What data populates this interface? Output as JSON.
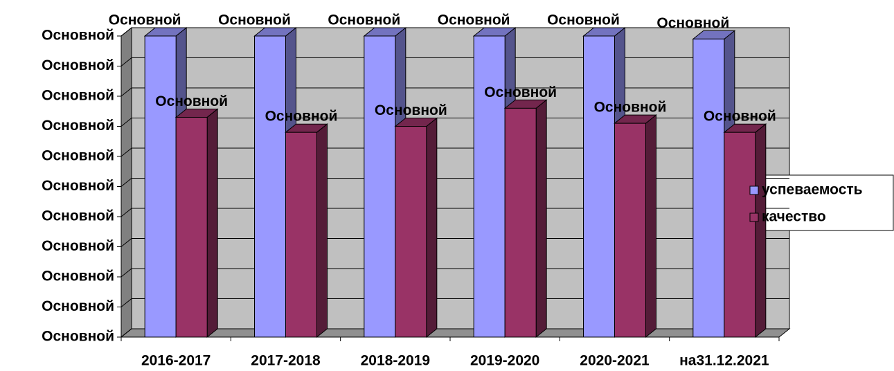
{
  "chart_data": {
    "type": "bar3d",
    "categories": [
      "2016-2017",
      "2017-2018",
      "2018-2019",
      "2019-2020",
      "2020-2021",
      "на31.12.2021"
    ],
    "series": [
      {
        "name": "успеваемость",
        "color": "#9999ff",
        "values": [
          100,
          100,
          100,
          100,
          100,
          99
        ],
        "value_labels": [
          "Основной",
          "Основной",
          "Основной",
          "Основной",
          "Основной",
          "Основной"
        ]
      },
      {
        "name": "качество",
        "color": "#993366",
        "values": [
          73,
          68,
          70,
          76,
          71,
          68
        ],
        "value_labels": [
          "Основной",
          "Основной",
          "Основной",
          "Основной",
          "Основной",
          "Основной"
        ]
      }
    ],
    "ylim": [
      0,
      100
    ],
    "yticks": [
      {
        "value": 0,
        "label": "Основной"
      },
      {
        "value": 10,
        "label": "Основной"
      },
      {
        "value": 20,
        "label": "Основной"
      },
      {
        "value": 30,
        "label": "Основной"
      },
      {
        "value": 40,
        "label": "Основной"
      },
      {
        "value": 50,
        "label": "Основной"
      },
      {
        "value": 60,
        "label": "Основной"
      },
      {
        "value": 70,
        "label": "Основной"
      },
      {
        "value": 80,
        "label": "Основной"
      },
      {
        "value": 90,
        "label": "Основной"
      },
      {
        "value": 100,
        "label": "Основной"
      }
    ],
    "grid": true,
    "legend": "right"
  }
}
